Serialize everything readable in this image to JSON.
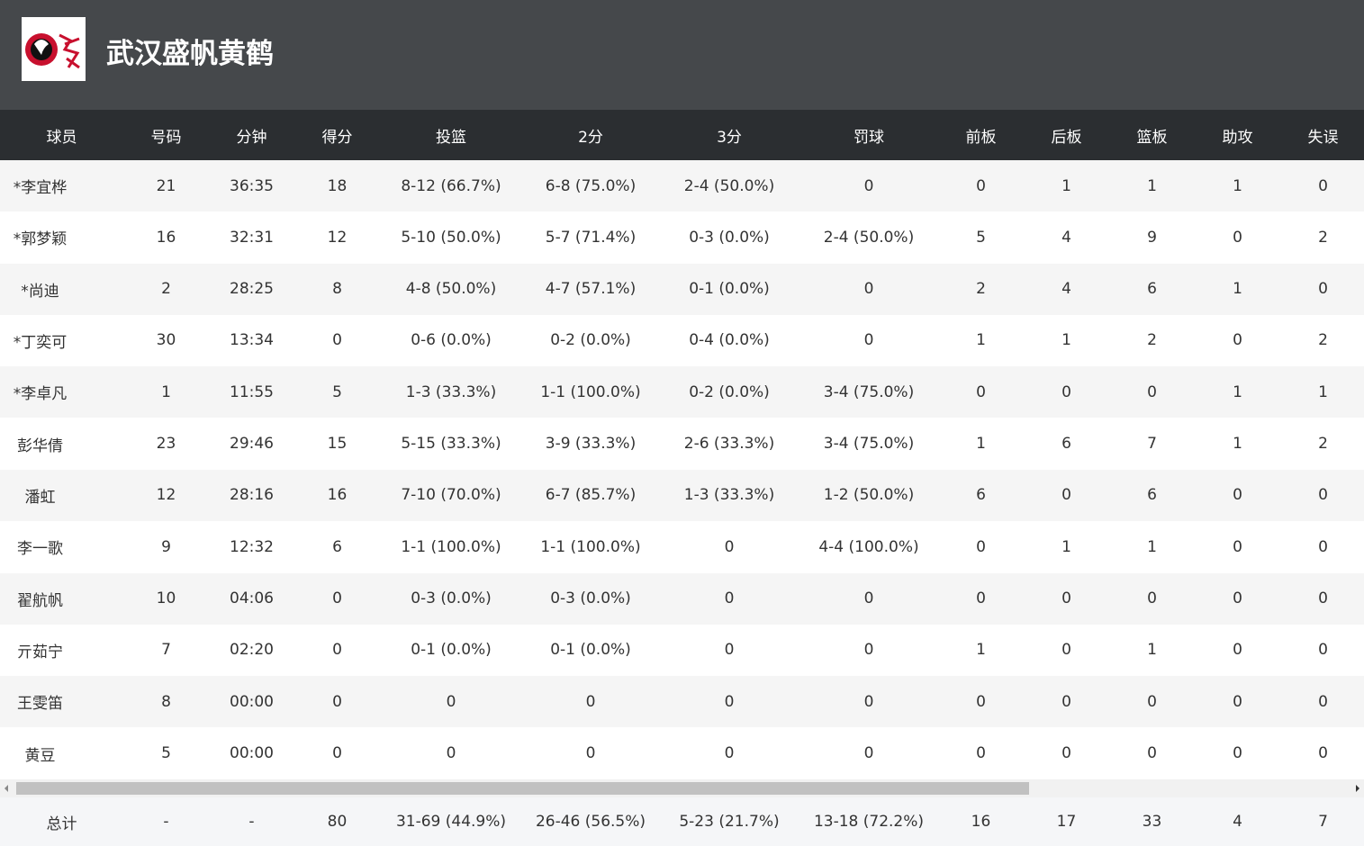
{
  "header": {
    "title": "武汉盛帆黄鹤"
  },
  "table": {
    "columns": [
      "球员",
      "号码",
      "分钟",
      "得分",
      "投篮",
      "2分",
      "3分",
      "罚球",
      "前板",
      "后板",
      "篮板",
      "助攻",
      "失误"
    ],
    "rows": [
      [
        "*李宜桦",
        21,
        "36:35",
        18,
        "8-12 (66.7%)",
        "6-8 (75.0%)",
        "2-4 (50.0%)",
        0,
        0,
        1,
        1,
        1,
        0
      ],
      [
        "*郭梦颖",
        16,
        "32:31",
        12,
        "5-10 (50.0%)",
        "5-7 (71.4%)",
        "0-3 (0.0%)",
        "2-4 (50.0%)",
        5,
        4,
        9,
        0,
        2
      ],
      [
        "*尚迪",
        2,
        "28:25",
        8,
        "4-8 (50.0%)",
        "4-7 (57.1%)",
        "0-1 (0.0%)",
        0,
        2,
        4,
        6,
        1,
        0
      ],
      [
        "*丁奕可",
        30,
        "13:34",
        0,
        "0-6 (0.0%)",
        "0-2 (0.0%)",
        "0-4 (0.0%)",
        0,
        1,
        1,
        2,
        0,
        2
      ],
      [
        "*李卓凡",
        1,
        "11:55",
        5,
        "1-3 (33.3%)",
        "1-1 (100.0%)",
        "0-2 (0.0%)",
        "3-4 (75.0%)",
        0,
        0,
        0,
        1,
        1
      ],
      [
        "彭华倩",
        23,
        "29:46",
        15,
        "5-15 (33.3%)",
        "3-9 (33.3%)",
        "2-6 (33.3%)",
        "3-4 (75.0%)",
        1,
        6,
        7,
        1,
        2
      ],
      [
        "潘虹",
        12,
        "28:16",
        16,
        "7-10 (70.0%)",
        "6-7 (85.7%)",
        "1-3 (33.3%)",
        "1-2 (50.0%)",
        6,
        0,
        6,
        0,
        0
      ],
      [
        "李一歌",
        9,
        "12:32",
        6,
        "1-1 (100.0%)",
        "1-1 (100.0%)",
        0,
        "4-4 (100.0%)",
        0,
        1,
        1,
        0,
        0
      ],
      [
        "翟航帆",
        10,
        "04:06",
        0,
        "0-3 (0.0%)",
        "0-3 (0.0%)",
        0,
        0,
        0,
        0,
        0,
        0,
        0
      ],
      [
        "亓茹宁",
        7,
        "02:20",
        0,
        "0-1 (0.0%)",
        "0-1 (0.0%)",
        0,
        0,
        1,
        0,
        1,
        0,
        0
      ],
      [
        "王雯笛",
        8,
        "00:00",
        0,
        0,
        0,
        0,
        0,
        0,
        0,
        0,
        0,
        0
      ],
      [
        "黄豆",
        5,
        "00:00",
        0,
        0,
        0,
        0,
        0,
        0,
        0,
        0,
        0,
        0
      ]
    ],
    "total": [
      "总计",
      "-",
      "-",
      80,
      "31-69 (44.9%)",
      "26-46 (56.5%)",
      "5-23 (21.7%)",
      "13-18 (72.2%)",
      16,
      17,
      33,
      4,
      7
    ]
  }
}
